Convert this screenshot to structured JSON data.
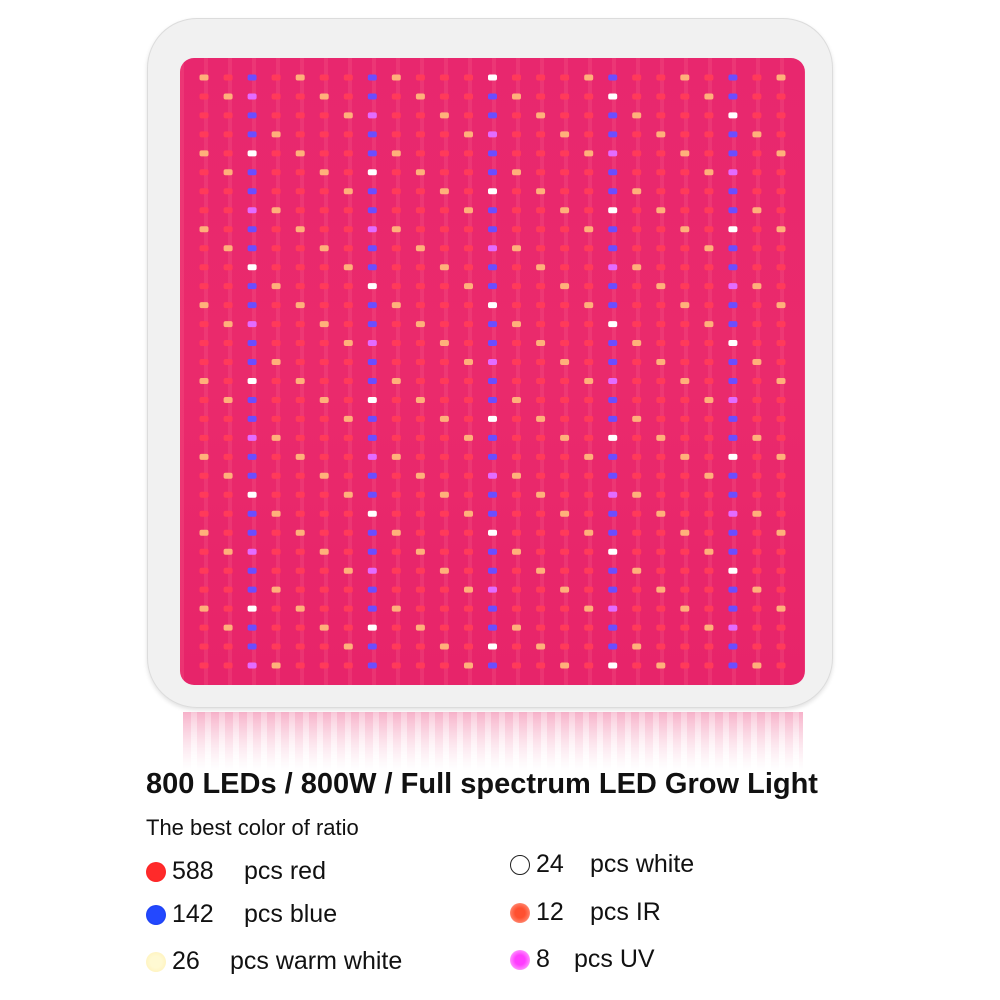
{
  "product": {
    "headline": "800 LEDs / 800W / Full spectrum LED Grow Light",
    "subtitle": "The best color of ratio"
  },
  "led_grid": {
    "columns": 25,
    "rows": 32,
    "blue_columns": [
      2,
      7,
      12,
      17,
      22
    ],
    "colors": {
      "red": "#ff3a5a",
      "orange": "#ffb07a",
      "blue": "#6b4dff",
      "white": "#ffffff",
      "uv": "#e36cff"
    }
  },
  "legend": [
    {
      "color": "red",
      "count": "588",
      "label": "pcs red"
    },
    {
      "color": "blue",
      "count": "142",
      "label": "pcs blue"
    },
    {
      "color": "warm",
      "count": "26",
      "label": "pcs warm white"
    },
    {
      "color": "white",
      "count": "24",
      "label": "pcs white"
    },
    {
      "color": "ir",
      "count": "12",
      "label": "pcs IR"
    },
    {
      "color": "uv",
      "count": "8",
      "label": "pcs UV"
    }
  ]
}
